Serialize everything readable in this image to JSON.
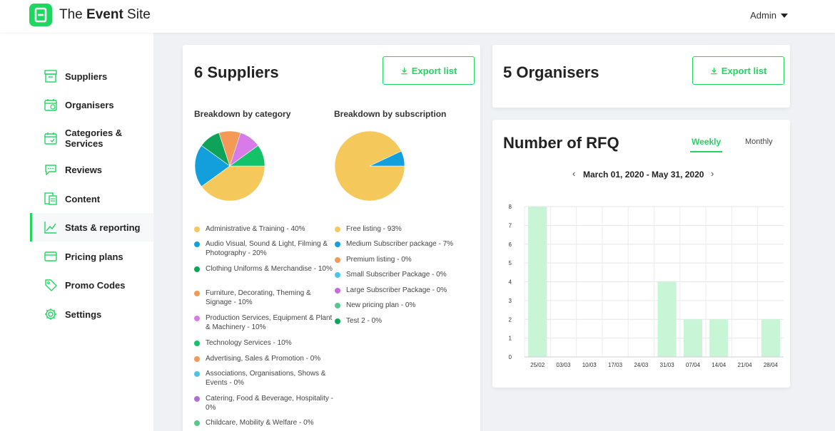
{
  "app": {
    "brand_light": "The ",
    "brand_bold": "Event",
    "brand_rest": " Site",
    "user_menu": "Admin",
    "accent": "#1ed760"
  },
  "sidebar": {
    "items": [
      {
        "label": "Suppliers",
        "icon": "suppliers-icon"
      },
      {
        "label": "Organisers",
        "icon": "calendar-icon"
      },
      {
        "label": "Categories & Services",
        "icon": "calendar-check-icon"
      },
      {
        "label": "Reviews",
        "icon": "chat-icon"
      },
      {
        "label": "Content",
        "icon": "document-icon"
      },
      {
        "label": "Stats & reporting",
        "icon": "chart-line-icon",
        "active": true
      },
      {
        "label": "Pricing plans",
        "icon": "credit-card-icon"
      },
      {
        "label": "Promo Codes",
        "icon": "tag-icon"
      },
      {
        "label": "Settings",
        "icon": "gear-icon"
      }
    ]
  },
  "suppliers": {
    "title": "6 Suppliers",
    "export_label": "Export list",
    "by_category": {
      "title": "Breakdown by category",
      "items": [
        {
          "label": "Administrative & Training - 40%",
          "value": 40,
          "color": "#f5c85c"
        },
        {
          "label": "Audio Visual, Sound & Light, Filming & Photography - 20%",
          "value": 20,
          "color": "#129fdc"
        },
        {
          "label": "Clothing Uniforms & Merchandise - 10%",
          "value": 10,
          "color": "#0fa35a"
        },
        {
          "label": "Furniture, Decorating, Theming & Signage - 10%",
          "value": 10,
          "color": "#f49a57"
        },
        {
          "label": "Production Services, Equipment & Plant & Machinery - 10%",
          "value": 10,
          "color": "#d87ae8"
        },
        {
          "label": "Technology Services - 10%",
          "value": 10,
          "color": "#14c26a"
        },
        {
          "label": "Advertising, Sales & Promotion - 0%",
          "value": 0,
          "color": "#f49a57"
        },
        {
          "label": "Associations, Organisations, Shows & Events - 0%",
          "value": 0,
          "color": "#48c6e9"
        },
        {
          "label": "Catering, Food & Beverage, Hospitality - 0%",
          "value": 0,
          "color": "#b06fd8"
        },
        {
          "label": "Childcare, Mobility & Welfare - 0%",
          "value": 0,
          "color": "#55c98c"
        }
      ]
    },
    "by_subscription": {
      "title": "Breakdown by subscription",
      "items": [
        {
          "label": "Free listing - 93%",
          "value": 93,
          "color": "#f5c85c"
        },
        {
          "label": "Medium Subscriber package - 7%",
          "value": 7,
          "color": "#129fdc"
        },
        {
          "label": "Premium listing - 0%",
          "value": 0,
          "color": "#f49a57"
        },
        {
          "label": "Small Subscriber Package - 0%",
          "value": 0,
          "color": "#48c6e9"
        },
        {
          "label": "Large Subscriber Package - 0%",
          "value": 0,
          "color": "#c46be0"
        },
        {
          "label": "New pricing plan - 0%",
          "value": 0,
          "color": "#55c98c"
        },
        {
          "label": "Test 2 - 0%",
          "value": 0,
          "color": "#0fa35a"
        }
      ]
    }
  },
  "organisers": {
    "title": "5 Organisers",
    "export_label": "Export list"
  },
  "rfq": {
    "title": "Number of RFQ",
    "tabs": [
      {
        "label": "Weekly",
        "active": true
      },
      {
        "label": "Monthly",
        "active": false
      }
    ],
    "range": "March 01, 2020 - May 31, 2020",
    "prev_symbol": "‹",
    "next_symbol": "›"
  },
  "chart_data": {
    "type": "bar",
    "categories": [
      "25/02",
      "03/03",
      "10/03",
      "17/03",
      "24/03",
      "31/03",
      "07/04",
      "14/04",
      "21/04",
      "28/04"
    ],
    "values": [
      8,
      0,
      0,
      0,
      0,
      4,
      2,
      2,
      0,
      2
    ],
    "ylim": [
      0,
      8
    ],
    "yticks": [
      0,
      1,
      2,
      3,
      4,
      5,
      6,
      7,
      8
    ],
    "bar_color": "#c8f5d6",
    "grid": true
  }
}
